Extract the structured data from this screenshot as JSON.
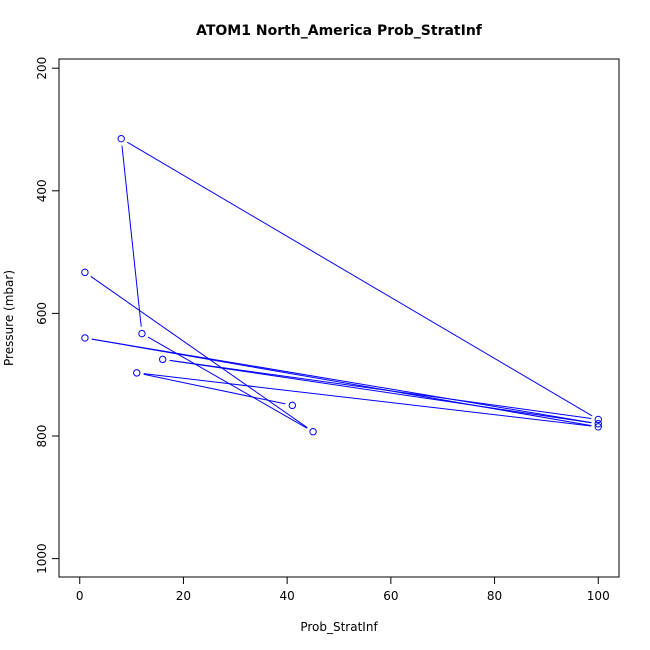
{
  "chart_data": {
    "type": "line",
    "title": "ATOM1 North_America Prob_StratInf",
    "xlabel": "Prob_StratInf",
    "ylabel": "Pressure (mbar)",
    "xlim": [
      -4,
      104
    ],
    "ylim": [
      1030,
      185
    ],
    "y_inverted": true,
    "xticks": [
      0,
      20,
      40,
      60,
      80,
      100
    ],
    "yticks": [
      200,
      400,
      600,
      800,
      1000
    ],
    "grid": false,
    "legend": "none",
    "series": [
      {
        "color": "#0000ff",
        "marker": "open-circle",
        "points": [
          {
            "x": 41,
            "y": 750
          },
          {
            "x": 11,
            "y": 697
          },
          {
            "x": 100,
            "y": 785
          },
          {
            "x": 1,
            "y": 640
          },
          {
            "x": 100,
            "y": 780
          },
          {
            "x": 16,
            "y": 675
          },
          {
            "x": 100,
            "y": 773
          },
          {
            "x": 8,
            "y": 315
          },
          {
            "x": 12,
            "y": 633
          },
          {
            "x": 45,
            "y": 793
          },
          {
            "x": 1,
            "y": 533
          }
        ]
      }
    ]
  }
}
